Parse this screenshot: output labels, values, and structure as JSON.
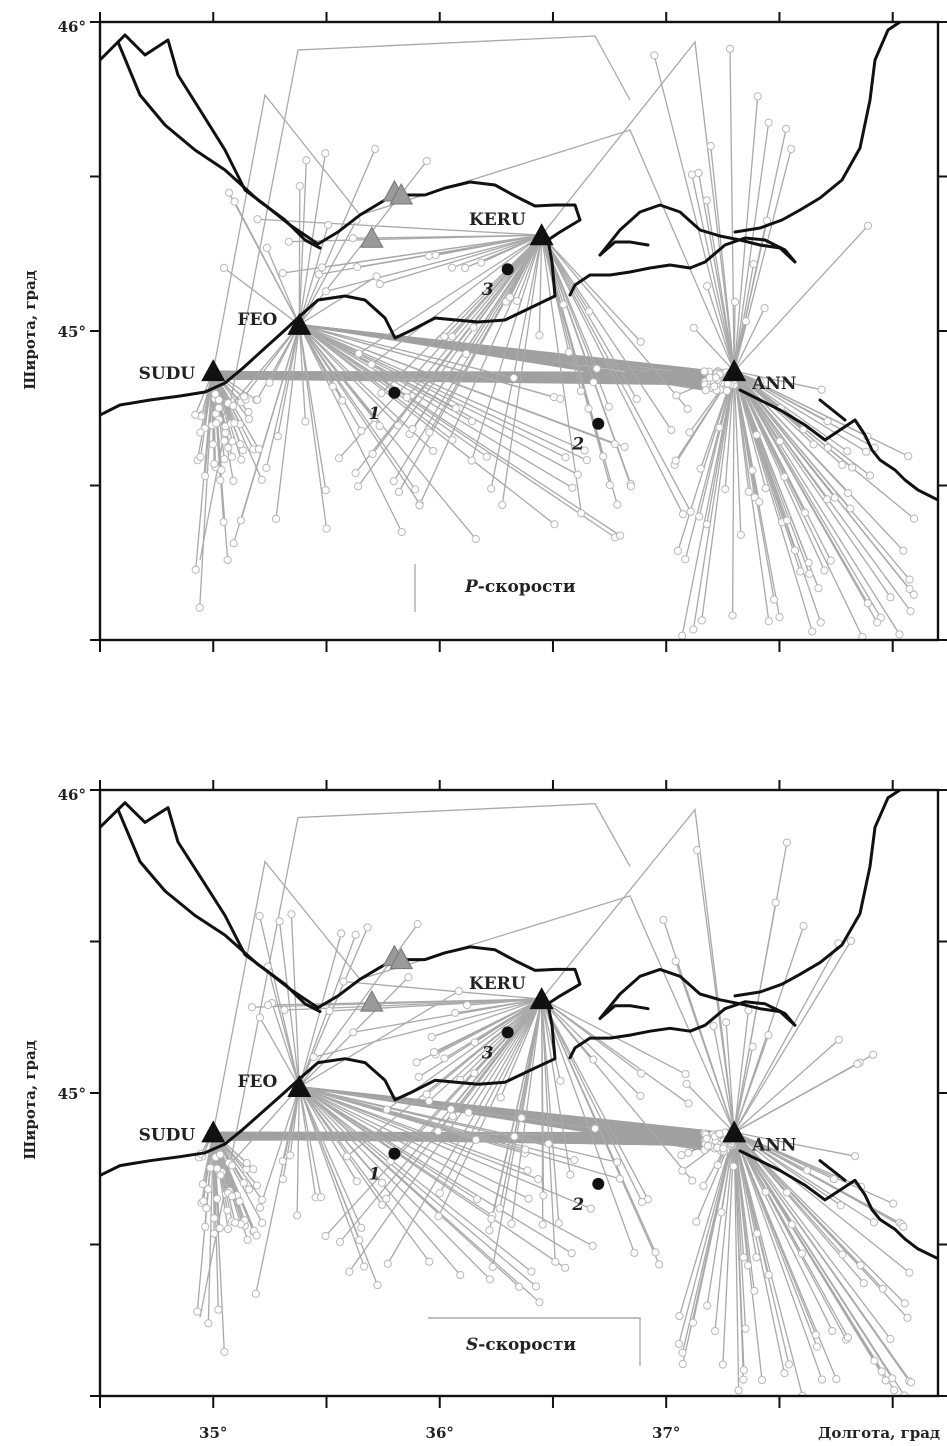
{
  "figure": {
    "x_axis": {
      "label": "Долгота, град",
      "ticks": [
        {
          "value": 35,
          "label": "35°"
        },
        {
          "value": 36,
          "label": "36°"
        },
        {
          "value": 37,
          "label": "37°"
        }
      ],
      "range": [
        34.5,
        38.2
      ]
    },
    "y_axis": {
      "label": "Широта, град",
      "ticks": [
        {
          "value": 46,
          "label": "46°"
        },
        {
          "value": 45,
          "label": "45°"
        }
      ],
      "range": [
        44.0,
        46.0
      ]
    },
    "stations": [
      {
        "code": "SUDU",
        "lon": 35.0,
        "lat": 44.87
      },
      {
        "code": "FEO",
        "lon": 35.38,
        "lat": 45.02
      },
      {
        "code": "KERU",
        "lon": 36.45,
        "lat": 45.31
      },
      {
        "code": "ANN",
        "lon": 37.3,
        "lat": 44.87
      }
    ],
    "auxiliary_stations": [
      {
        "lon": 35.8,
        "lat": 45.45
      },
      {
        "lon": 35.83,
        "lat": 45.44
      },
      {
        "lon": 35.7,
        "lat": 45.3
      }
    ],
    "points": [
      {
        "label": "1",
        "lon": 35.8,
        "lat": 44.8
      },
      {
        "label": "2",
        "lon": 36.7,
        "lat": 44.7
      },
      {
        "label": "3",
        "lon": 36.3,
        "lat": 45.2
      }
    ],
    "colors": {
      "coastline": "#111111",
      "rays": "#a9a9a9",
      "stations": "#111111",
      "aux_stations": "#9a9a9a"
    },
    "panels": [
      {
        "id": "P",
        "caption_letter": "P",
        "caption_rest": "-скорости"
      },
      {
        "id": "S",
        "caption_letter": "S",
        "caption_rest": "-скорости"
      }
    ]
  }
}
